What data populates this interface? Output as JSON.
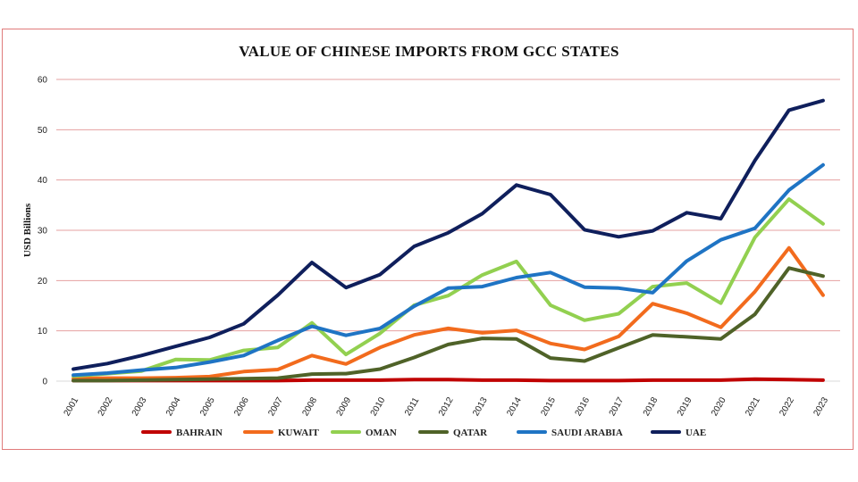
{
  "chart_data": {
    "type": "line",
    "title": "VALUE OF CHINESE IMPORTS FROM GCC STATES",
    "xlabel": "",
    "ylabel": "USD Billions",
    "ylim": [
      0,
      60
    ],
    "yticks": [
      "0",
      "10",
      "20",
      "30",
      "40",
      "50",
      "60"
    ],
    "grid": true,
    "legend": "bottom",
    "categories": [
      "2001",
      "2002",
      "2003",
      "2004",
      "2005",
      "2006",
      "2007",
      "2008",
      "2009",
      "2010",
      "2011",
      "2012",
      "2013",
      "2014",
      "2015",
      "2016",
      "2017",
      "2018",
      "2019",
      "2020",
      "2021",
      "2022",
      "2023"
    ],
    "series": [
      {
        "name": "BAHRAIN",
        "color": "#c00000",
        "values": [
          0.1,
          0.1,
          0.1,
          0.1,
          0.1,
          0.1,
          0.1,
          0.2,
          0.2,
          0.2,
          0.3,
          0.3,
          0.2,
          0.2,
          0.1,
          0.1,
          0.1,
          0.2,
          0.2,
          0.2,
          0.4,
          0.3,
          0.2
        ]
      },
      {
        "name": "KUWAIT",
        "color": "#f26b1d",
        "values": [
          0.5,
          0.6,
          0.6,
          0.7,
          0.9,
          1.9,
          2.3,
          5.1,
          3.4,
          6.7,
          9.2,
          10.5,
          9.6,
          10.1,
          7.5,
          6.3,
          8.9,
          15.4,
          13.5,
          10.7,
          17.8,
          26.5,
          17.1
        ]
      },
      {
        "name": "OMAN",
        "color": "#92d050",
        "values": [
          1.0,
          1.5,
          2.0,
          4.3,
          4.2,
          6.1,
          6.7,
          11.6,
          5.3,
          9.5,
          15.1,
          17.0,
          21.1,
          23.8,
          15.1,
          12.1,
          13.4,
          18.8,
          19.5,
          15.5,
          28.6,
          36.2,
          31.3
        ]
      },
      {
        "name": "QATAR",
        "color": "#4f6228",
        "values": [
          0.1,
          0.1,
          0.2,
          0.3,
          0.4,
          0.5,
          0.6,
          1.4,
          1.5,
          2.4,
          4.7,
          7.3,
          8.5,
          8.4,
          4.6,
          4.0,
          6.6,
          9.2,
          8.8,
          8.4,
          13.3,
          22.5,
          20.9
        ]
      },
      {
        "name": "SAUDI ARABIA",
        "color": "#1f74c4",
        "values": [
          1.2,
          1.6,
          2.2,
          2.7,
          3.8,
          5.1,
          8.1,
          10.9,
          9.1,
          10.5,
          14.9,
          18.5,
          18.8,
          20.6,
          21.6,
          18.7,
          18.5,
          17.6,
          23.9,
          28.1,
          30.4,
          38.0,
          43.0
        ]
      },
      {
        "name": "UAE",
        "color": "#0f1f5c",
        "values": [
          2.4,
          3.5,
          5.1,
          6.9,
          8.7,
          11.4,
          17.1,
          23.6,
          18.6,
          21.2,
          26.8,
          29.5,
          33.3,
          39.0,
          37.1,
          30.1,
          28.7,
          29.9,
          33.5,
          32.3,
          43.9,
          53.9,
          55.8
        ]
      }
    ]
  }
}
